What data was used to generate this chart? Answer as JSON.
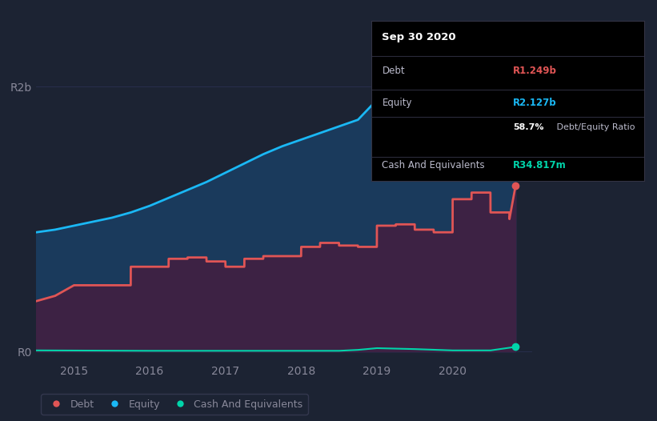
{
  "bg_color": "#1c2333",
  "plot_bg_color": "#1c2333",
  "equity_color": "#1ab8f5",
  "debt_color": "#e05555",
  "cash_color": "#00d4aa",
  "equity_fill": "#1a3a5c",
  "debt_fill": "#3d2244",
  "grid_color": "#2a3050",
  "label_color": "#888899",
  "ylabel_R0": 0,
  "ylabel_R2b": 2000000000,
  "ymax": 2400000000,
  "ymin": -80000000,
  "xmin": 2014.5,
  "xmax": 2021.05,
  "xtick_positions": [
    2015,
    2016,
    2017,
    2018,
    2019,
    2020
  ],
  "xtick_labels": [
    "2015",
    "2016",
    "2017",
    "2018",
    "2019",
    "2020"
  ],
  "equity_x": [
    2014.5,
    2014.75,
    2015.0,
    2015.25,
    2015.5,
    2015.75,
    2016.0,
    2016.25,
    2016.5,
    2016.75,
    2017.0,
    2017.25,
    2017.5,
    2017.75,
    2018.0,
    2018.25,
    2018.5,
    2018.75,
    2019.0,
    2019.25,
    2019.5,
    2019.75,
    2020.0,
    2020.25,
    2020.5,
    2020.75,
    2020.83
  ],
  "equity_y": [
    900000000,
    920000000,
    950000000,
    980000000,
    1010000000,
    1050000000,
    1100000000,
    1160000000,
    1220000000,
    1280000000,
    1350000000,
    1420000000,
    1490000000,
    1550000000,
    1600000000,
    1650000000,
    1700000000,
    1750000000,
    1900000000,
    1940000000,
    1970000000,
    1990000000,
    2010000000,
    2050000000,
    2080000000,
    2110000000,
    2127000000
  ],
  "debt_x": [
    2014.5,
    2014.75,
    2015.0,
    2015.749,
    2015.75,
    2016.249,
    2016.25,
    2016.499,
    2016.5,
    2016.749,
    2016.75,
    2016.999,
    2017.0,
    2017.249,
    2017.25,
    2017.499,
    2017.5,
    2017.749,
    2017.75,
    2017.999,
    2018.0,
    2018.249,
    2018.25,
    2018.499,
    2018.5,
    2018.749,
    2018.75,
    2018.999,
    2019.0,
    2019.249,
    2019.25,
    2019.499,
    2019.5,
    2019.749,
    2019.75,
    2019.999,
    2020.0,
    2020.249,
    2020.25,
    2020.499,
    2020.5,
    2020.749,
    2020.75,
    2020.83
  ],
  "debt_y": [
    380000000,
    420000000,
    500000000,
    500000000,
    640000000,
    640000000,
    700000000,
    700000000,
    710000000,
    710000000,
    680000000,
    680000000,
    640000000,
    640000000,
    700000000,
    700000000,
    720000000,
    720000000,
    720000000,
    720000000,
    790000000,
    790000000,
    820000000,
    820000000,
    800000000,
    800000000,
    790000000,
    790000000,
    950000000,
    950000000,
    960000000,
    960000000,
    920000000,
    920000000,
    900000000,
    900000000,
    1150000000,
    1150000000,
    1200000000,
    1200000000,
    1050000000,
    1050000000,
    1000000000,
    1249000000
  ],
  "cash_x": [
    2014.5,
    2015.0,
    2015.5,
    2016.0,
    2016.5,
    2017.0,
    2017.5,
    2018.0,
    2018.5,
    2018.75,
    2019.0,
    2019.5,
    2020.0,
    2020.5,
    2020.83
  ],
  "cash_y": [
    8000000,
    7000000,
    6000000,
    5000000,
    5000000,
    5000000,
    5000000,
    5000000,
    5000000,
    12000000,
    25000000,
    18000000,
    8000000,
    8000000,
    34817000
  ],
  "dot_size": 6,
  "tooltip_title": "Sep 30 2020",
  "tooltip_debt_label": "Debt",
  "tooltip_debt_value": "R1.249b",
  "tooltip_equity_label": "Equity",
  "tooltip_equity_value": "R2.127b",
  "tooltip_ratio": "58.7%",
  "tooltip_ratio_label": " Debt/Equity Ratio",
  "tooltip_cash_label": "Cash And Equivalents",
  "tooltip_cash_value": "R34.817m",
  "legend_debt": "Debt",
  "legend_equity": "Equity",
  "legend_cash": "Cash And Equivalents"
}
